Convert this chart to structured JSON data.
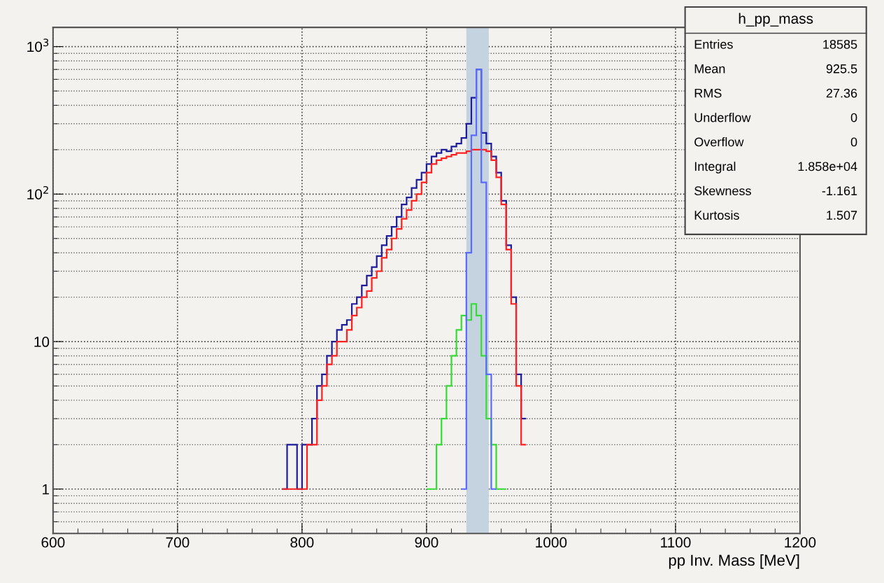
{
  "chart_data": {
    "type": "histogram",
    "xlabel": "pp Inv. Mass [MeV]",
    "bins": [
      784,
      788,
      792,
      796,
      800,
      804,
      808,
      812,
      816,
      820,
      824,
      828,
      832,
      836,
      840,
      844,
      848,
      852,
      856,
      860,
      864,
      868,
      872,
      876,
      880,
      884,
      888,
      892,
      896,
      900,
      904,
      908,
      912,
      916,
      920,
      924,
      928,
      932,
      936,
      940,
      944,
      948,
      952,
      956,
      960,
      964,
      968,
      972,
      976,
      980
    ],
    "series": [
      {
        "color": "#1c1c9c",
        "values": [
          1,
          2,
          2,
          1,
          2,
          2,
          3,
          5,
          6,
          8,
          10,
          12,
          13,
          14,
          18,
          20,
          24,
          28,
          32,
          38,
          45,
          52,
          60,
          70,
          85,
          95,
          110,
          125,
          140,
          160,
          180,
          190,
          200,
          195,
          210,
          220,
          240,
          300,
          450,
          700,
          260,
          220,
          180,
          140,
          90,
          45,
          20,
          6,
          3
        ]
      },
      {
        "color": "#ff2020",
        "values": [
          1,
          1,
          1,
          1,
          1,
          2,
          2,
          4,
          5,
          7,
          8,
          10,
          10,
          12,
          15,
          17,
          20,
          22,
          27,
          30,
          37,
          42,
          50,
          58,
          68,
          78,
          90,
          100,
          120,
          140,
          160,
          170,
          175,
          180,
          185,
          190,
          190,
          195,
          200,
          200,
          200,
          195,
          170,
          130,
          85,
          42,
          18,
          5,
          2
        ]
      },
      {
        "color": "#33dd33",
        "bins": [
          900,
          904,
          908,
          912,
          916,
          920,
          924,
          928,
          932,
          936,
          940,
          944,
          948,
          952,
          956,
          960,
          964
        ],
        "values": [
          1,
          1,
          2,
          3,
          5,
          8,
          12,
          15,
          14,
          18,
          15,
          8,
          3,
          2,
          1,
          1
        ]
      },
      {
        "color": "#5a6cff",
        "bins": [
          928,
          932,
          936,
          940,
          944,
          948,
          952,
          956
        ],
        "values": [
          1,
          40,
          250,
          700,
          120,
          6,
          1
        ]
      }
    ],
    "xlim": [
      600,
      1200
    ],
    "xticks": [
      600,
      700,
      800,
      900,
      1000,
      1100,
      1200
    ],
    "ylim": [
      0.5,
      1350
    ],
    "yticks": [
      1,
      10,
      {
        "value": 100,
        "label": "10$^{2}$"
      },
      {
        "value": 1000,
        "label": "10$^{3}$"
      }
    ],
    "log": "y",
    "grid": true,
    "bands": [
      {
        "axis": "x",
        "from": 932,
        "to": 950,
        "color": "#c5d3e0"
      }
    ],
    "annotations": [
      "h_pp_mass",
      "Entries",
      "18585",
      "Mean",
      "925.5",
      "RMS",
      "27.36",
      "Underflow",
      "0",
      "Overflow",
      "0",
      "Integral",
      "1.858e+04",
      "Skewness",
      "-1.161",
      "Kurtosis",
      "1.507"
    ]
  }
}
